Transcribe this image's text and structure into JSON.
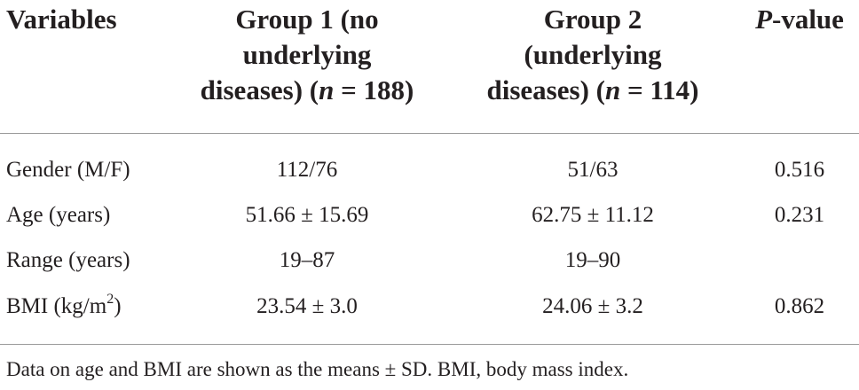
{
  "headers": {
    "variables": "Variables",
    "group1": {
      "line1": "Group 1 (no",
      "line2": "underlying",
      "line3_prefix": "diseases) (",
      "n_symbol": "n",
      "line3_suffix": " = 188)"
    },
    "group2": {
      "line1": "Group 2",
      "line2": "(underlying",
      "line3_prefix": "diseases) (",
      "n_symbol": "n",
      "line3_suffix": " = 114)"
    },
    "pvalue": {
      "p_symbol": "P",
      "suffix": "-value"
    }
  },
  "rows": [
    {
      "variable": "Gender (M/F)",
      "group1": "112/76",
      "group2": "51/63",
      "p": "0.516"
    },
    {
      "variable": "Age (years)",
      "group1": "51.66 ± 15.69",
      "group2": "62.75 ± 11.12",
      "p": "0.231"
    },
    {
      "variable": "Range (years)",
      "group1": "19–87",
      "group2": "19–90",
      "p": ""
    },
    {
      "variable_prefix": "BMI (kg/m",
      "variable_sup": "2",
      "variable_suffix": ")",
      "group1": "23.54 ± 3.0",
      "group2": "24.06 ± 3.2",
      "p": "0.862"
    }
  ],
  "footnote": "Data on age and BMI are shown as the means ± SD. BMI, body mass index."
}
